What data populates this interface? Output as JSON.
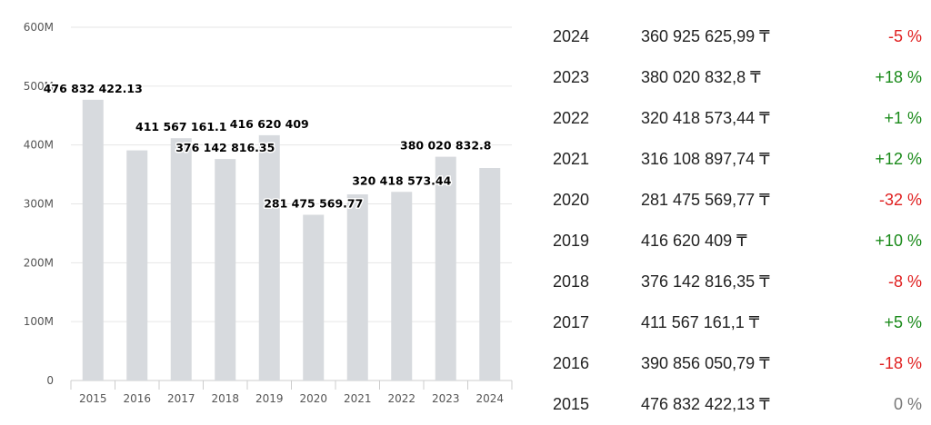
{
  "chart_data": {
    "type": "bar",
    "categories": [
      "2015",
      "2016",
      "2017",
      "2018",
      "2019",
      "2020",
      "2021",
      "2022",
      "2023",
      "2024"
    ],
    "values": [
      476832422.13,
      390856050.79,
      411567161.1,
      376142816.35,
      416620409,
      281475569.77,
      316108897.74,
      320418573.44,
      380020832.8,
      360925625.99
    ],
    "ylim": [
      0,
      600000000
    ],
    "yticks": [
      0,
      100000000,
      200000000,
      300000000,
      400000000,
      500000000,
      600000000
    ],
    "ytick_labels": [
      "0",
      "100M",
      "200M",
      "300M",
      "400M",
      "500M",
      "600M"
    ],
    "data_labels": [
      {
        "category": "2015",
        "text": "476 832 422.13"
      },
      {
        "category": "2017",
        "text": "411 567 161.1"
      },
      {
        "category": "2018",
        "text": "376 142 816.35"
      },
      {
        "category": "2019",
        "text": "416 620 409"
      },
      {
        "category": "2020",
        "text": "281 475 569.77"
      },
      {
        "category": "2022",
        "text": "320 418 573.44"
      },
      {
        "category": "2023",
        "text": "380 020 832.8"
      }
    ],
    "bar_color": "#d7dade",
    "grid": true,
    "title": "",
    "xlabel": "",
    "ylabel": ""
  },
  "table": {
    "rows": [
      {
        "year": "2024",
        "value": "360 925 625,99 ₸",
        "change": "-5 %",
        "trend": "neg"
      },
      {
        "year": "2023",
        "value": "380 020 832,8 ₸",
        "change": "+18 %",
        "trend": "pos"
      },
      {
        "year": "2022",
        "value": "320 418 573,44 ₸",
        "change": "+1 %",
        "trend": "pos"
      },
      {
        "year": "2021",
        "value": "316 108 897,74 ₸",
        "change": "+12 %",
        "trend": "pos"
      },
      {
        "year": "2020",
        "value": "281 475 569,77 ₸",
        "change": "-32 %",
        "trend": "neg"
      },
      {
        "year": "2019",
        "value": "416 620 409 ₸",
        "change": "+10 %",
        "trend": "pos"
      },
      {
        "year": "2018",
        "value": "376 142 816,35 ₸",
        "change": "-8 %",
        "trend": "neg"
      },
      {
        "year": "2017",
        "value": "411 567 161,1 ₸",
        "change": "+5 %",
        "trend": "pos"
      },
      {
        "year": "2016",
        "value": "390 856 050,79 ₸",
        "change": "-18 %",
        "trend": "neg"
      },
      {
        "year": "2015",
        "value": "476 832 422,13 ₸",
        "change": "0 %",
        "trend": "neu"
      }
    ],
    "colors": {
      "positive": "#1a8a1a",
      "negative": "#e02020",
      "neutral": "#777777"
    }
  }
}
